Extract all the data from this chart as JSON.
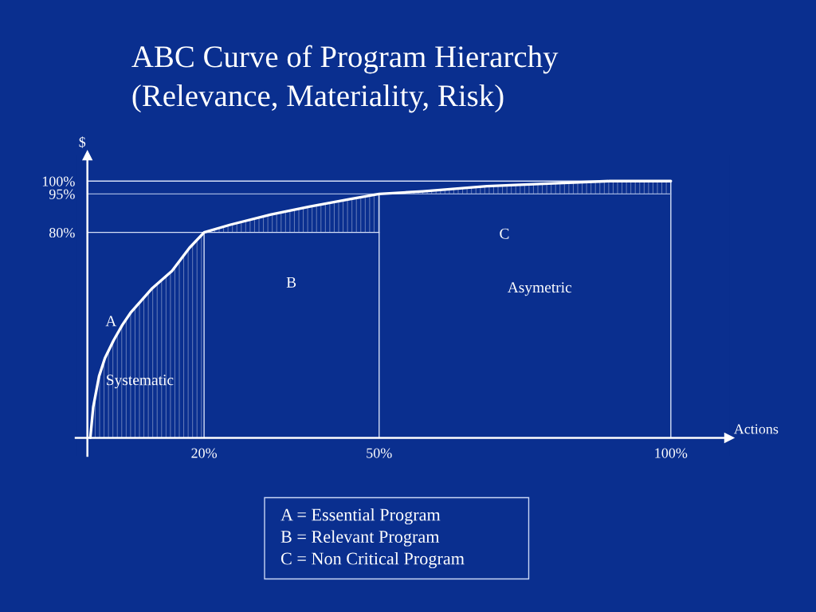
{
  "chart_data": {
    "type": "line",
    "title": "ABC Curve of Program Hierarchy",
    "subtitle": "(Relevance, Materiality, Risk)",
    "xlabel": "Actions",
    "ylabel": "$",
    "xlim": [
      -2,
      110
    ],
    "ylim": [
      -7,
      110
    ],
    "xticks": [
      {
        "value": 20,
        "label": "20%"
      },
      {
        "value": 50,
        "label": "50%"
      },
      {
        "value": 100,
        "label": "100%"
      }
    ],
    "yticks": [
      {
        "value": 80,
        "label": "80%"
      },
      {
        "value": 95,
        "label": "95%"
      },
      {
        "value": 100,
        "label": "100%"
      }
    ],
    "series": [
      {
        "color": "#ffffff",
        "x": [
          0.5,
          1,
          2,
          3,
          4.5,
          6,
          7.5,
          11,
          14.5,
          17.5,
          20,
          20,
          24.5,
          31.5,
          38,
          45,
          50,
          50,
          57.5,
          68.5,
          79,
          89.5,
          100
        ],
        "values": [
          0,
          12,
          24,
          31,
          38,
          44,
          49,
          58,
          65,
          74,
          80,
          80,
          83,
          87,
          90,
          93,
          95,
          95,
          96,
          98,
          99,
          100,
          100
        ],
        "lower": [
          0,
          0,
          0,
          0,
          0,
          0,
          0,
          0,
          0,
          0,
          0,
          80,
          80,
          80,
          80,
          80,
          80,
          95,
          95,
          95,
          95,
          95,
          95
        ],
        "upper": [
          0,
          12,
          24,
          31,
          38,
          44,
          49,
          58,
          65,
          74,
          80,
          80,
          83,
          87,
          90,
          93,
          95,
          95,
          96,
          98,
          99,
          100,
          100
        ]
      },
      {
        "color": "#d6e0f7",
        "x": [
          0,
          100,
          100
        ],
        "values": [
          100,
          100,
          0
        ]
      },
      {
        "color": "#9fb2e0",
        "x": [
          0,
          100
        ],
        "values": [
          95,
          95
        ]
      },
      {
        "color": "#d6e0f7",
        "x": [
          50,
          50
        ],
        "values": [
          95,
          0
        ]
      },
      {
        "color": "#d6e0f7",
        "x": [
          0,
          50
        ],
        "values": [
          80,
          80
        ]
      },
      {
        "color": "#d6e0f7",
        "x": [
          20,
          20
        ],
        "values": [
          80,
          0
        ]
      }
    ],
    "annotations": [
      "A",
      "Systematic",
      "B",
      "C",
      "Asymetric",
      "A = Essential Program",
      "B = Relevant Program",
      "C = Non Critical Program"
    ]
  }
}
